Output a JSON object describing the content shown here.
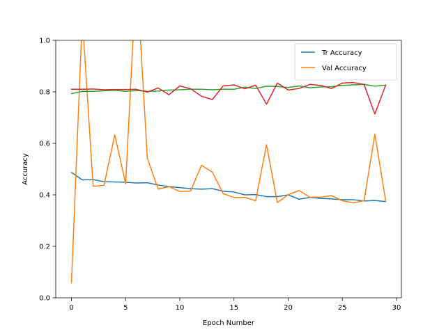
{
  "chart_data": {
    "type": "line",
    "xlabel": "Epoch Number",
    "ylabel": "Accuracy",
    "xlim": [
      -1.45,
      30.45
    ],
    "ylim": [
      0.0,
      1.0
    ],
    "xticks": [
      0,
      5,
      10,
      15,
      20,
      25,
      30
    ],
    "yticks": [
      0.0,
      0.2,
      0.4,
      0.6,
      0.8,
      1.0
    ],
    "xtick_labels": [
      "0",
      "5",
      "10",
      "15",
      "20",
      "25",
      "30"
    ],
    "ytick_labels": [
      "0.0",
      "0.2",
      "0.4",
      "0.6",
      "0.8",
      "1.0"
    ],
    "grid": false,
    "legend_position": "top-right",
    "x": [
      0,
      1,
      2,
      3,
      4,
      5,
      6,
      7,
      8,
      9,
      10,
      11,
      12,
      13,
      14,
      15,
      16,
      17,
      18,
      19,
      20,
      21,
      22,
      23,
      24,
      25,
      26,
      27,
      28,
      29
    ],
    "series": [
      {
        "name": "Tr Accuracy",
        "color": "#1f77b4",
        "in_legend": true,
        "values": [
          0.487,
          0.458,
          0.459,
          0.451,
          0.45,
          0.449,
          0.446,
          0.447,
          0.438,
          0.432,
          0.428,
          0.424,
          0.422,
          0.424,
          0.414,
          0.411,
          0.4,
          0.401,
          0.393,
          0.393,
          0.4,
          0.383,
          0.39,
          0.386,
          0.384,
          0.381,
          0.381,
          0.376,
          0.378,
          0.374
        ]
      },
      {
        "name": "Val Accuracy",
        "color": "#ff7f0e",
        "in_legend": true,
        "values": [
          0.06,
          1.09,
          0.433,
          0.437,
          0.633,
          0.443,
          1.27,
          0.543,
          0.422,
          0.432,
          0.413,
          0.415,
          0.515,
          0.488,
          0.405,
          0.39,
          0.39,
          0.377,
          0.595,
          0.37,
          0.4,
          0.417,
          0.391,
          0.391,
          0.397,
          0.377,
          0.369,
          0.377,
          0.635,
          0.376
        ]
      },
      {
        "color": "#2ca02c",
        "in_legend": false,
        "values": [
          0.793,
          0.802,
          0.802,
          0.804,
          0.806,
          0.802,
          0.805,
          0.802,
          0.803,
          0.807,
          0.808,
          0.81,
          0.81,
          0.808,
          0.81,
          0.81,
          0.818,
          0.813,
          0.822,
          0.821,
          0.817,
          0.823,
          0.816,
          0.819,
          0.82,
          0.825,
          0.827,
          0.829,
          0.822,
          0.826
        ]
      },
      {
        "color": "#d62728",
        "in_legend": false,
        "values": [
          0.81,
          0.81,
          0.811,
          0.808,
          0.809,
          0.809,
          0.81,
          0.799,
          0.815,
          0.789,
          0.823,
          0.812,
          0.783,
          0.77,
          0.823,
          0.827,
          0.812,
          0.826,
          0.752,
          0.834,
          0.807,
          0.813,
          0.829,
          0.825,
          0.813,
          0.834,
          0.836,
          0.829,
          0.714,
          0.826
        ]
      }
    ]
  }
}
